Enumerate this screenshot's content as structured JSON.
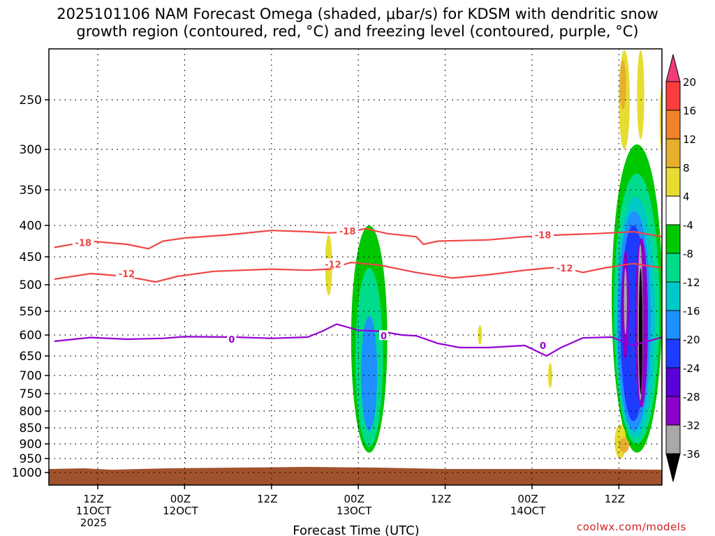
{
  "chart_data": {
    "type": "heatmap",
    "title_lines": [
      "2025101106 NAM Forecast Omega (shaded, μbar/s) for KDSM with dendritic snow",
      "growth region (contoured, red, °C) and freezing level (contoured, purple, °C)"
    ],
    "xlabel": "Forecast Time (UTC)",
    "ylabel": "",
    "x_range_hours": [
      0,
      84
    ],
    "ylim": [
      1050,
      200
    ],
    "y_ticks": [
      250,
      300,
      350,
      400,
      450,
      500,
      550,
      600,
      650,
      700,
      750,
      800,
      850,
      900,
      950,
      1000
    ],
    "x_ticks": [
      {
        "hour": 6,
        "label": "12Z",
        "sub": "11OCT",
        "sub2": "2025"
      },
      {
        "hour": 18,
        "label": "00Z",
        "sub": "12OCT",
        "sub2": ""
      },
      {
        "hour": 30,
        "label": "12Z",
        "sub": "",
        "sub2": ""
      },
      {
        "hour": 42,
        "label": "00Z",
        "sub": "13OCT",
        "sub2": ""
      },
      {
        "hour": 54,
        "label": "12Z",
        "sub": "",
        "sub2": ""
      },
      {
        "hour": 66,
        "label": "00Z",
        "sub": "14OCT",
        "sub2": ""
      },
      {
        "hour": 78,
        "label": "12Z",
        "sub": "",
        "sub2": ""
      }
    ],
    "colorbar": {
      "levels": [
        -36,
        -32,
        -28,
        -24,
        -20,
        -16,
        -12,
        -8,
        -4,
        4,
        8,
        12,
        16,
        20
      ],
      "labels": [
        "20",
        "16",
        "12",
        "8",
        "4",
        "-4",
        "-8",
        "-12",
        "-16",
        "-20",
        "-24",
        "-28",
        "-32",
        "-36"
      ],
      "colors": [
        "#000000",
        "#a8a8a8",
        "#8c00c8",
        "#5a00d8",
        "#1e3cff",
        "#1e90ff",
        "#00c8c8",
        "#00dc8c",
        "#00c800",
        "#ffffff",
        "#e6dc32",
        "#e6af2d",
        "#f08228",
        "#fa3c3c",
        "#f03c78"
      ]
    },
    "contours": [
      {
        "name": "-18",
        "color": "#f04646",
        "label": "-18",
        "points": [
          [
            0,
            435
          ],
          [
            5,
            425
          ],
          [
            10,
            430
          ],
          [
            13,
            437
          ],
          [
            15,
            425
          ],
          [
            18,
            420
          ],
          [
            24,
            415
          ],
          [
            30,
            408
          ],
          [
            35,
            410
          ],
          [
            38,
            412
          ],
          [
            41,
            410
          ],
          [
            43,
            405
          ],
          [
            46,
            413
          ],
          [
            50,
            418
          ],
          [
            51,
            430
          ],
          [
            53,
            425
          ],
          [
            60,
            423
          ],
          [
            65,
            418
          ],
          [
            70,
            415
          ],
          [
            75,
            413
          ],
          [
            80,
            410
          ],
          [
            84,
            418
          ]
        ]
      },
      {
        "name": "-12",
        "color": "#f04646",
        "label": "-12",
        "points": [
          [
            0,
            490
          ],
          [
            5,
            480
          ],
          [
            10,
            485
          ],
          [
            14,
            495
          ],
          [
            17,
            485
          ],
          [
            22,
            476
          ],
          [
            30,
            472
          ],
          [
            35,
            474
          ],
          [
            38,
            472
          ],
          [
            41,
            460
          ],
          [
            45,
            465
          ],
          [
            50,
            478
          ],
          [
            55,
            488
          ],
          [
            60,
            482
          ],
          [
            65,
            474
          ],
          [
            70,
            468
          ],
          [
            73,
            478
          ],
          [
            76,
            470
          ],
          [
            80,
            462
          ],
          [
            84,
            470
          ]
        ]
      },
      {
        "name": "0",
        "color": "#9400d3",
        "label": "0",
        "points": [
          [
            0,
            615
          ],
          [
            5,
            606
          ],
          [
            10,
            610
          ],
          [
            15,
            608
          ],
          [
            18,
            604
          ],
          [
            25,
            605
          ],
          [
            30,
            608
          ],
          [
            35,
            605
          ],
          [
            37,
            592
          ],
          [
            39,
            577
          ],
          [
            42,
            590
          ],
          [
            45,
            592
          ],
          [
            48,
            600
          ],
          [
            50,
            602
          ],
          [
            53,
            620
          ],
          [
            56,
            630
          ],
          [
            60,
            630
          ],
          [
            65,
            625
          ],
          [
            68,
            650
          ],
          [
            70,
            630
          ],
          [
            73,
            607
          ],
          [
            77,
            605
          ],
          [
            80,
            625
          ],
          [
            84,
            605
          ]
        ]
      }
    ],
    "contour_labels": [
      {
        "text": "-18",
        "hour": 4,
        "p": 427
      },
      {
        "text": "-12",
        "hour": 10,
        "p": 480
      },
      {
        "text": "-18",
        "hour": 40.5,
        "p": 409
      },
      {
        "text": "-12",
        "hour": 38.5,
        "p": 463
      },
      {
        "text": "0",
        "hour": 24.5,
        "p": 610
      },
      {
        "text": "0",
        "hour": 45.5,
        "p": 602
      },
      {
        "text": "-18",
        "hour": 67.5,
        "p": 415
      },
      {
        "text": "-12",
        "hour": 70.5,
        "p": 470
      },
      {
        "text": "0",
        "hour": 67.5,
        "p": 625
      }
    ],
    "shaded_regions": [
      {
        "level": 4,
        "hour_range": [
          78,
          79.5
        ],
        "p_range": [
          200,
          300
        ]
      },
      {
        "level": 4,
        "hour_range": [
          80.5,
          81.5
        ],
        "p_range": [
          200,
          290
        ]
      },
      {
        "level": 4,
        "hour_range": [
          37.4,
          38.4
        ],
        "p_range": [
          415,
          520
        ]
      },
      {
        "level": -4,
        "hour_range": [
          41,
          46
        ],
        "p_range": [
          400,
          930
        ]
      },
      {
        "level": -12,
        "hour_range": [
          42,
          44.5
        ],
        "p_range": [
          580,
          880
        ]
      },
      {
        "level": -20,
        "hour_range": [
          43,
          44.3
        ],
        "p_range": [
          670,
          770
        ]
      },
      {
        "level": -4,
        "hour_range": [
          77,
          84
        ],
        "p_range": [
          295,
          930
        ]
      },
      {
        "level": -20,
        "hour_range": [
          78,
          82
        ],
        "p_range": [
          390,
          840
        ]
      },
      {
        "level": -36,
        "hour_range": [
          80.5,
          81.5
        ],
        "p_range": [
          430,
          760
        ]
      },
      {
        "level": 4,
        "hour_range": [
          77.4,
          79
        ],
        "p_range": [
          840,
          950
        ]
      }
    ],
    "ground_p": 1000
  },
  "credit": "coolwx.com/models"
}
